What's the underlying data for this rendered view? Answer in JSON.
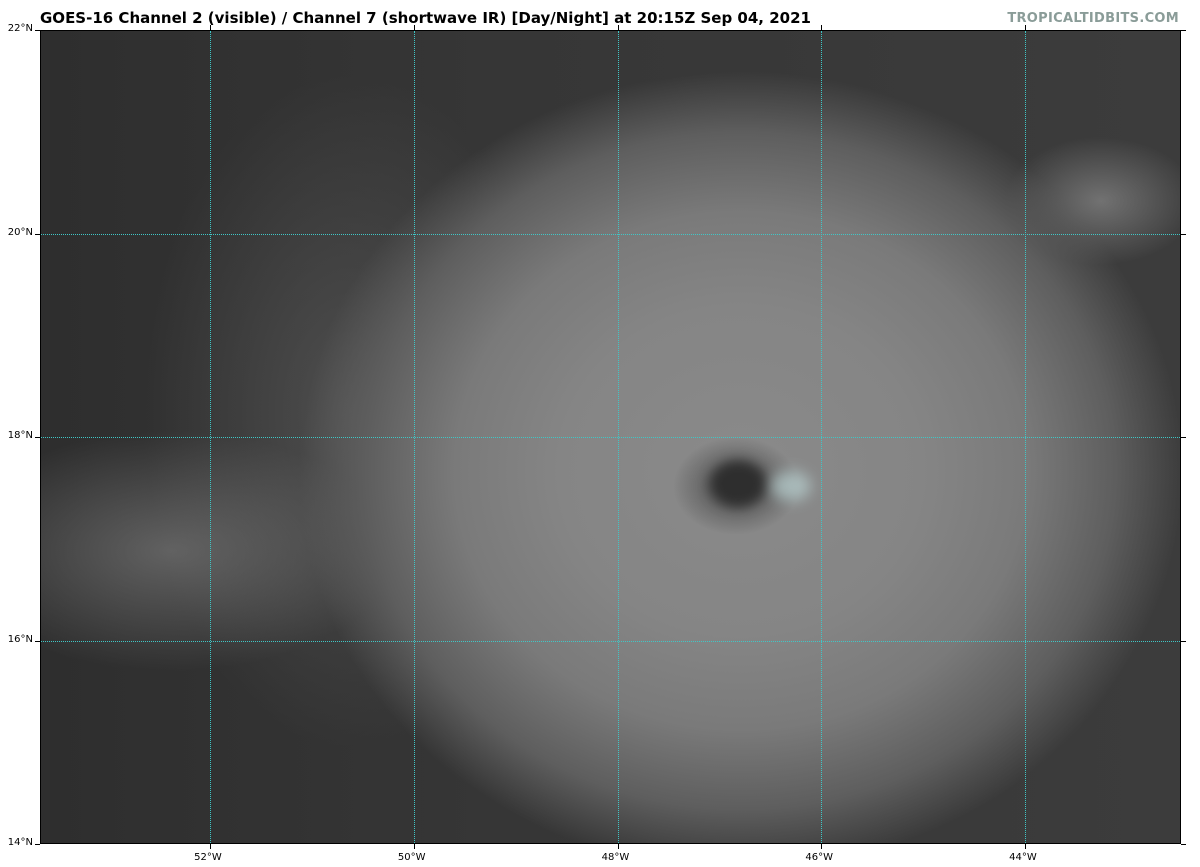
{
  "title": "GOES-16 Channel 2 (visible) / Channel 7 (shortwave IR) [Day/Night] at 20:15Z Sep 04, 2021",
  "brand": "TROPICALTIDBITS.COM",
  "map": {
    "extent_lon": [
      -53.67,
      -42.47
    ],
    "extent_lat": [
      14,
      22
    ],
    "gridline_color": "#3fc7c7",
    "lat_ticks": [
      {
        "value": 22,
        "label": "22°N"
      },
      {
        "value": 20,
        "label": "20°N"
      },
      {
        "value": 18,
        "label": "18°N"
      },
      {
        "value": 16,
        "label": "16°N"
      },
      {
        "value": 14,
        "label": "14°N"
      }
    ],
    "lon_ticks": [
      {
        "value": -52,
        "label": "52°W"
      },
      {
        "value": -50,
        "label": "50°W"
      },
      {
        "value": -48,
        "label": "48°W"
      },
      {
        "value": -46,
        "label": "46°W"
      },
      {
        "value": -44,
        "label": "44°W"
      }
    ]
  }
}
